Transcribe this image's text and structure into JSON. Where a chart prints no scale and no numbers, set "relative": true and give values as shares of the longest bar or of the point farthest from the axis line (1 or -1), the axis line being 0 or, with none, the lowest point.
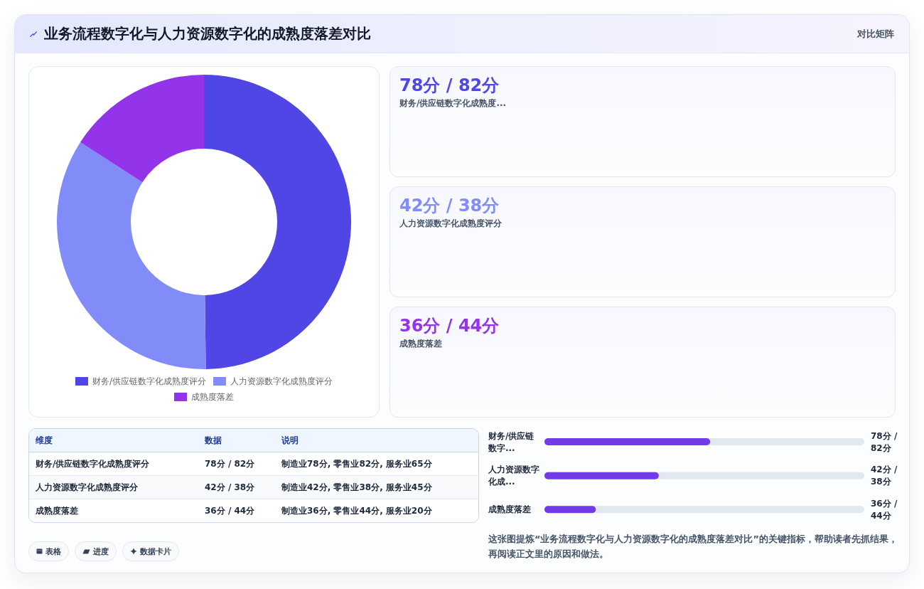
{
  "chart_data": [
    {
      "type": "other",
      "title": "业务流程数字化与人力资源数字化的成熟度落差对比",
      "subtitle": "对比矩阵"
    },
    {
      "type": "donut",
      "categories": [
        "财务/供应链数字化成熟度评分",
        "人力资源数字化成熟度评分",
        "成熟度落差"
      ],
      "values": [
        49.8,
        34.3,
        15.9
      ],
      "colors": [
        "#4f46e5",
        "#818cf8",
        "#9333ea"
      ],
      "legend": "bottom"
    },
    {
      "type": "other",
      "annotations": [
        "78分 / 82分",
        "财务/供应链数字化成熟度...",
        "42分 / 38分",
        "人力资源数字化成熟度评分",
        "36分 / 44分",
        "成熟度落差"
      ]
    },
    {
      "type": "other",
      "annotations": [
        "维度",
        "数据",
        "说明",
        "财务/供应链数字化成熟度评分",
        "78分 / 82分",
        "制造业78分, 零售业82分, 服务业65分",
        "人力资源数字化成熟度评分",
        "42分 / 38分",
        "制造业42分, 零售业38分, 服务业45分",
        "成熟度落差",
        "36分 / 44分",
        "制造业36分, 零售业44分, 服务业20分"
      ]
    },
    {
      "type": "bar",
      "orientation": "horizontal",
      "relative": true,
      "categories": [
        "财务/供应链数字...",
        "人力资源数字化成...",
        "成熟度落差"
      ],
      "values": [
        1,
        0.69,
        0.31
      ],
      "color": "#713ce7",
      "annotations": [
        "78分 / 82分",
        "42分 / 38分",
        "36分 / 44分",
        "这张图提炼“业务流程数字化与人力资源数字化的成熟度落差对比”的关键指标，帮助读者先抓结果，再阅读正文里的原因和做法。"
      ]
    },
    {
      "type": "other",
      "annotations": [
        "表格",
        "进度",
        "数据卡片"
      ]
    }
  ]
}
